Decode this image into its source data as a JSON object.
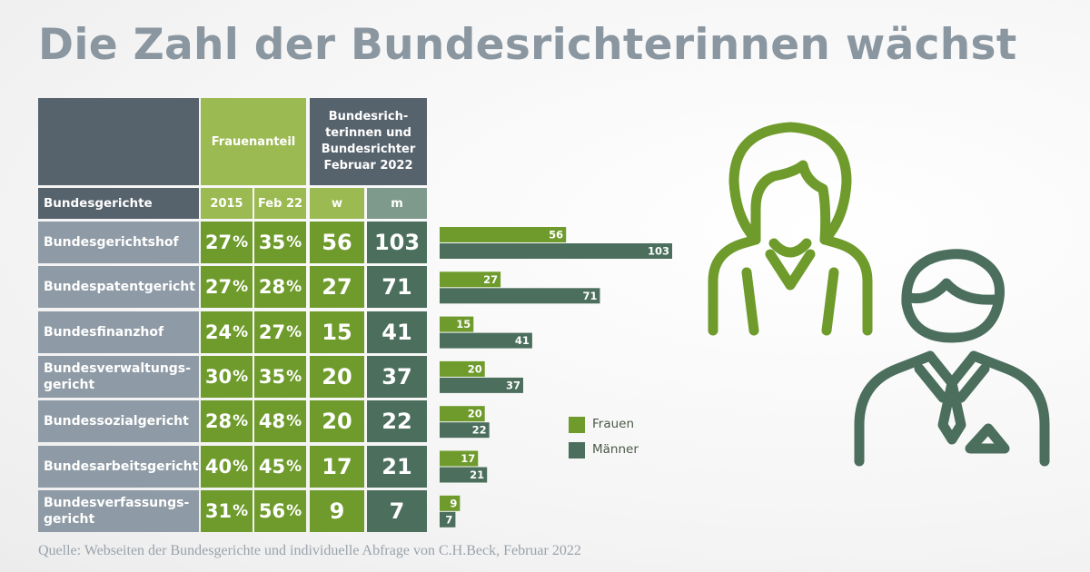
{
  "title": "Die Zahl der Bundesrichterinnen wächst",
  "header": {
    "frauenanteil": "Frauenanteil",
    "richter_line1": "Bundesrich-",
    "richter_line2": "terinnen und",
    "richter_line3": "Bundesrichter",
    "richter_line4": "Februar 2022",
    "col_court": "Bundesgerichte",
    "col_2015": "2015",
    "col_feb22": "Feb 22",
    "col_w": "w",
    "col_m": "m"
  },
  "rows": [
    {
      "court_l1": "Bundesgerichtshof",
      "court_l2": "",
      "p2015": "27",
      "p2022": "35",
      "w": "56",
      "m": "103"
    },
    {
      "court_l1": "Bundespatentgericht",
      "court_l2": "",
      "p2015": "27",
      "p2022": "28",
      "w": "27",
      "m": "71"
    },
    {
      "court_l1": "Bundesfinanzhof",
      "court_l2": "",
      "p2015": "24",
      "p2022": "27",
      "w": "15",
      "m": "41"
    },
    {
      "court_l1": "Bundesverwaltungs-",
      "court_l2": "gericht",
      "p2015": "30",
      "p2022": "35",
      "w": "20",
      "m": "37"
    },
    {
      "court_l1": "Bundessozialgericht",
      "court_l2": "",
      "p2015": "28",
      "p2022": "48",
      "w": "20",
      "m": "22"
    },
    {
      "court_l1": "Bundesarbeitsgericht",
      "court_l2": "",
      "p2015": "40",
      "p2022": "45",
      "w": "17",
      "m": "21"
    },
    {
      "court_l1": "Bundesverfassungs-",
      "court_l2": "gericht",
      "p2015": "31",
      "p2022": "56",
      "w": "9",
      "m": "7"
    }
  ],
  "percent_symbol": "%",
  "chart_data": {
    "type": "bar",
    "orientation": "horizontal",
    "categories": [
      "Bundesgerichtshof",
      "Bundespatentgericht",
      "Bundesfinanzhof",
      "Bundesverwaltungsgericht",
      "Bundessozialgericht",
      "Bundesarbeitsgericht",
      "Bundesverfassungsgericht"
    ],
    "series": [
      {
        "name": "Frauen",
        "values": [
          56,
          27,
          15,
          20,
          20,
          17,
          9
        ],
        "color": "#6e9b2b"
      },
      {
        "name": "Männer",
        "values": [
          103,
          71,
          41,
          37,
          22,
          21,
          7
        ],
        "color": "#4b6e5d"
      }
    ],
    "title": "Die Zahl der Bundesrichterinnen wächst",
    "legend_placement": "right",
    "grid": false
  },
  "legend": {
    "frauen": "Frauen",
    "maenner": "Männer"
  },
  "source": "Quelle:  Webseiten der Bundesgerichte und individuelle Abfrage von C.H.Beck, Februar 2022",
  "colors": {
    "green": "#6e9b2b",
    "light_green": "#9cba52",
    "dark_teal": "#4b6e5d",
    "slate": "#56626c",
    "gray": "#8e9aa5"
  },
  "icons": [
    "woman-icon",
    "man-icon"
  ]
}
